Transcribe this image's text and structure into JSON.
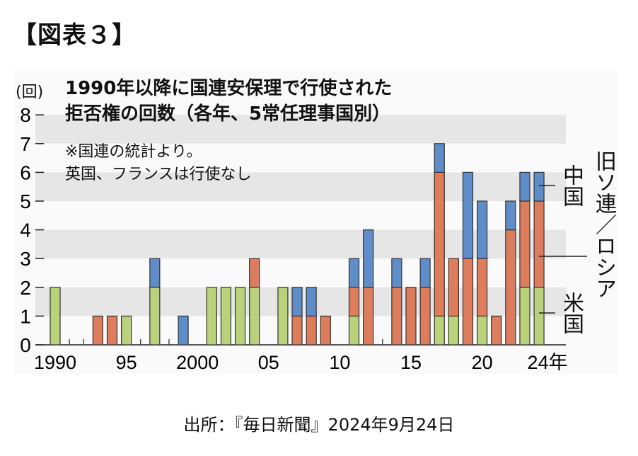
{
  "header": "【図表３】",
  "footer": "出所：『毎日新聞』2024年9月24日",
  "chart_data": {
    "type": "bar",
    "stacked": true,
    "title": "1990年以降に国連安保理で行使された拒否権の回数（各年、5常任理事国別）",
    "title_line1": "1990年以降に国連安保理で行使された",
    "title_line2": "拒否権の回数（各年、5常任理事国別）",
    "ylabel": "(回)",
    "notes": [
      "※国連の統計より。",
      "英国、フランスは行使なし"
    ],
    "ylim": [
      0,
      8
    ],
    "yticks": [
      "0",
      "1",
      "2",
      "3",
      "4",
      "5",
      "6",
      "7",
      "8"
    ],
    "xtick_labels": [
      {
        "year": 1990,
        "label": "1990"
      },
      {
        "year": 1995,
        "label": "95"
      },
      {
        "year": 2000,
        "label": "2000"
      },
      {
        "year": 2005,
        "label": "05"
      },
      {
        "year": 2010,
        "label": "10"
      },
      {
        "year": 2015,
        "label": "15"
      },
      {
        "year": 2020,
        "label": "20"
      },
      {
        "year": 2024,
        "label": "24年"
      }
    ],
    "categories": [
      1990,
      1991,
      1992,
      1993,
      1994,
      1995,
      1996,
      1997,
      1998,
      1999,
      2000,
      2001,
      2002,
      2003,
      2004,
      2005,
      2006,
      2007,
      2008,
      2009,
      2010,
      2011,
      2012,
      2013,
      2014,
      2015,
      2016,
      2017,
      2018,
      2019,
      2020,
      2021,
      2022,
      2023,
      2024
    ],
    "series": [
      {
        "name": "米国",
        "color": "#bad27a",
        "values": [
          2,
          0,
          0,
          0,
          0,
          1,
          0,
          2,
          0,
          0,
          0,
          2,
          2,
          2,
          2,
          0,
          2,
          0,
          0,
          0,
          0,
          1,
          0,
          0,
          0,
          0,
          0,
          1,
          1,
          0,
          1,
          0,
          0,
          2,
          2
        ]
      },
      {
        "name": "旧ソ連／ロシア",
        "color": "#de7d5e",
        "values": [
          0,
          0,
          0,
          1,
          1,
          0,
          0,
          0,
          0,
          0,
          0,
          0,
          0,
          0,
          1,
          0,
          0,
          1,
          1,
          1,
          0,
          1,
          2,
          0,
          2,
          2,
          2,
          5,
          2,
          3,
          2,
          1,
          4,
          3,
          3
        ]
      },
      {
        "name": "中国",
        "color": "#5e8dca",
        "values": [
          0,
          0,
          0,
          0,
          0,
          0,
          0,
          1,
          0,
          1,
          0,
          0,
          0,
          0,
          0,
          0,
          0,
          1,
          1,
          0,
          0,
          1,
          2,
          0,
          1,
          0,
          1,
          1,
          0,
          3,
          2,
          0,
          1,
          1,
          1
        ]
      }
    ],
    "legend_placement": "right",
    "grid": "alternating horizontal bands"
  }
}
